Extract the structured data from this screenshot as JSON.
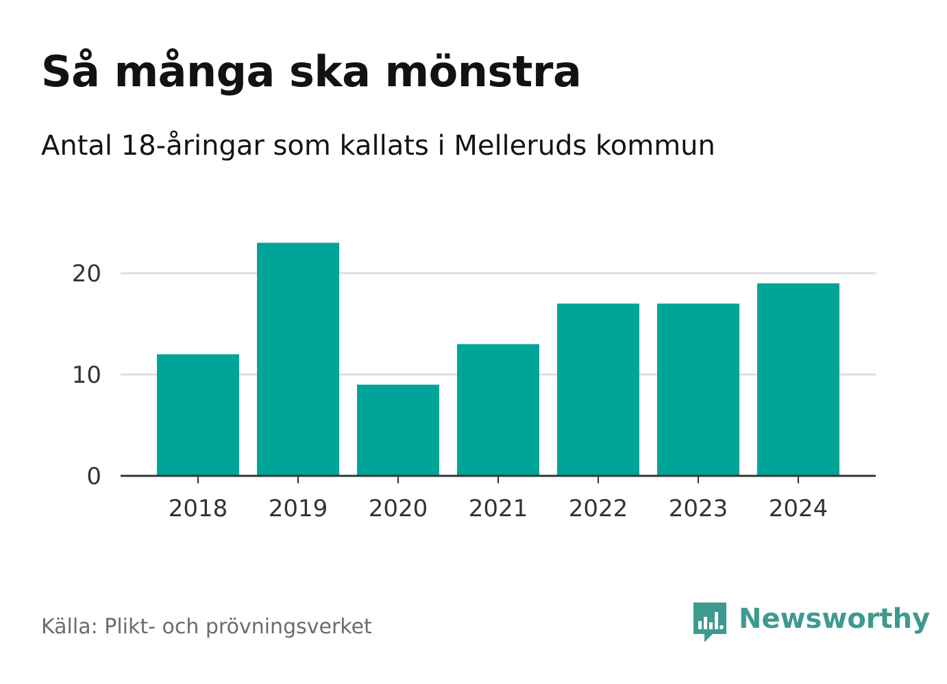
{
  "title": "Så många ska mönstra",
  "subtitle": "Antal 18-åringar som kallats i Melleruds kommun",
  "source": "Källa: Plikt- och prövningsverket",
  "brand": {
    "name": "Newsworthy",
    "icon": "newsworthy-logo-icon",
    "color": "#3d9a8f"
  },
  "colors": {
    "bar": "#00a499",
    "grid": "#dddddd",
    "axis": "#333333",
    "tick_text": "#333333"
  },
  "chart_data": {
    "type": "bar",
    "title": "Så många ska mönstra",
    "subtitle": "Antal 18-åringar som kallats i Melleruds kommun",
    "xlabel": "",
    "ylabel": "",
    "categories": [
      "2018",
      "2019",
      "2020",
      "2021",
      "2022",
      "2023",
      "2024"
    ],
    "values": [
      12,
      23,
      9,
      13,
      17,
      17,
      19
    ],
    "ylim": [
      0,
      23
    ],
    "yticks": [
      "0",
      "10",
      "20"
    ],
    "grid": true,
    "legend": "none"
  }
}
